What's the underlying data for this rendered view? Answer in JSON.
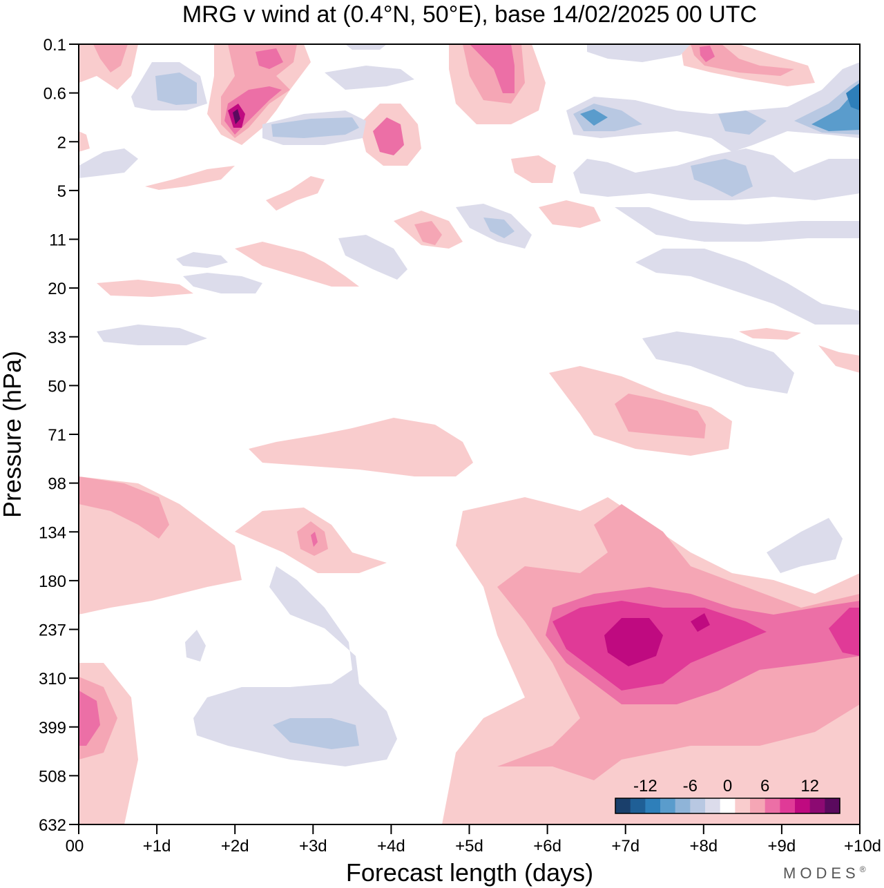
{
  "chart_data": {
    "type": "heatmap",
    "title": "MRG v wind at (0.4°N, 50°E),  base 14/02/2025  00 UTC",
    "xlabel": "Forecast length (days)",
    "ylabel": "Pressure (hPa)",
    "x_ticks": [
      "00",
      "+1d",
      "+2d",
      "+3d",
      "+4d",
      "+5d",
      "+6d",
      "+7d",
      "+8d",
      "+9d",
      "+10d"
    ],
    "y_ticks": [
      "0.1",
      "0.6",
      "2",
      "5",
      "11",
      "20",
      "33",
      "50",
      "71",
      "98",
      "134",
      "180",
      "237",
      "310",
      "399",
      "508",
      "632"
    ],
    "xlim": [
      0,
      10
    ],
    "y_scale": "log",
    "colorbar": {
      "labels": [
        "-12",
        "-6",
        "0",
        "6",
        "12"
      ],
      "levels": [
        -14,
        -12,
        -10,
        -8,
        -6,
        -4,
        -2,
        2,
        4,
        6,
        8,
        10,
        12,
        14
      ],
      "colors": [
        "#1a3f6b",
        "#1f5f96",
        "#2e7fba",
        "#5a9ccc",
        "#8fb4d8",
        "#b8c8e2",
        "#dcdceb",
        "#ffffff",
        "#f9cccd",
        "#f5a6b5",
        "#ec6fa6",
        "#e03a97",
        "#bf0a80",
        "#8c0a72",
        "#5a0a5e"
      ]
    },
    "features": [
      {
        "name": "upper-troposphere maximum",
        "x": 7.0,
        "p": 237,
        "v": 13
      },
      {
        "name": "secondary maximum",
        "x": 8.0,
        "p": 230,
        "v": 12
      },
      {
        "name": "right-edge maximum",
        "x": 9.9,
        "p": 237,
        "v": 10
      },
      {
        "name": "lower maximum",
        "x": 0.2,
        "p": 399,
        "v": 9
      },
      {
        "name": "stratospheric maximum",
        "x": 2.0,
        "p": 1.3,
        "v": 13
      },
      {
        "name": "stratospheric minimum",
        "x": 9.9,
        "p": 0.9,
        "v": -12
      },
      {
        "name": "mid-level minimum",
        "x": 3.3,
        "p": 399,
        "v": -5
      }
    ]
  },
  "brand": "MODES",
  "brand_mark": "®"
}
